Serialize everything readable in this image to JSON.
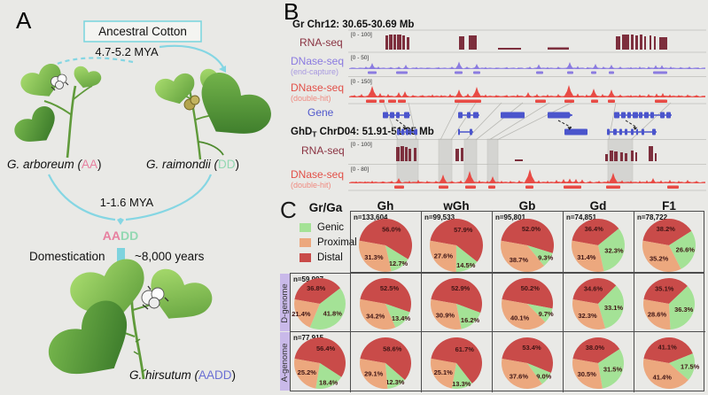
{
  "colors": {
    "background": "#e9e9e6",
    "cyan_arrow": "#85d6e3",
    "aa_pink": "#e77f9f",
    "dd_green": "#93d8b2",
    "aadd_blue": "#6a6fd4",
    "rna_seq_track": "#7d2f3d",
    "dnase_end_capture_track": "#8b7ce0",
    "dnase_double_hit_track": "#e84b45",
    "gene_track": "#4b55cc",
    "genic": "#a4e296",
    "proximal": "#eca87e",
    "distal": "#c94b49",
    "row_strip": "#c9b9e9"
  },
  "panel_a": {
    "label": "A",
    "ancestral_box": "Ancestral Cotton",
    "divergence_time": "4.7-5.2 MYA",
    "species_left": {
      "prefix": "G. arboreum (",
      "genome": "AA",
      "suffix": ")"
    },
    "species_right": {
      "prefix": "G. raimondii (",
      "genome": "DD",
      "suffix": ")"
    },
    "hybridization_time": "1-1.6 MYA",
    "hybrid_aa": "AA",
    "hybrid_dd": "DD",
    "domestication_label": "Domestication",
    "domestication_time": "~8,000 years",
    "species_bottom": {
      "prefix": "G. hirsutum (",
      "genome": "AADD",
      "suffix": ")"
    }
  },
  "panel_b": {
    "label": "B",
    "region_top": "Gr Chr12: 30.65-30.69 Mb",
    "region_bottom": {
      "base": "GhD",
      "sub": "T",
      "rest": " ChrD04: 51.91-51.95 Mb"
    },
    "tracks": [
      {
        "name": "RNA-seq",
        "scale": "[0 - 100]"
      },
      {
        "name": "DNase-seq",
        "sub": "(end-capture)",
        "scale": "[0 - 50]"
      },
      {
        "name": "DNase-seq",
        "sub": "(double-hit)",
        "scale": "[0 - 150]"
      },
      {
        "name": "Gene"
      },
      {
        "name": "RNA-seq",
        "scale": "[0 - 100]"
      },
      {
        "name": "DNase-seq",
        "sub": "(double-hit)",
        "scale": "[0 - 80]"
      }
    ]
  },
  "panel_c": {
    "label": "C",
    "corner_label": "Gr/Ga",
    "column_headers": [
      "Gh",
      "wGh",
      "Gb",
      "Gd",
      "F1"
    ],
    "row_labels": [
      "D-genome",
      "A-genome"
    ],
    "legend": [
      {
        "label": "Genic",
        "color": "#a4e296"
      },
      {
        "label": "Proximal",
        "color": "#eca87e"
      },
      {
        "label": "Distal",
        "color": "#c94b49"
      }
    ]
  },
  "chart_data": {
    "type": "pie",
    "unit": "percent",
    "slice_order": [
      "distal",
      "genic",
      "proximal"
    ],
    "start_angle_deg": 280,
    "legend_position": "top-left cell",
    "rows": [
      {
        "row": "all",
        "cells": [
          {
            "col": "Gh",
            "n": "n=133,604",
            "distal": 56.0,
            "genic": 12.7,
            "proximal": 31.3
          },
          {
            "col": "wGh",
            "n": "n=99,533",
            "distal": 57.9,
            "genic": 14.5,
            "proximal": 27.6
          },
          {
            "col": "Gb",
            "n": "n=95,801",
            "distal": 52.0,
            "genic": 9.3,
            "proximal": 38.7
          },
          {
            "col": "Gd",
            "n": "n=74,851",
            "distal": 36.4,
            "genic": 32.3,
            "proximal": 31.4
          },
          {
            "col": "F1",
            "n": "n=78,722",
            "distal": 38.2,
            "genic": 26.6,
            "proximal": 35.2
          }
        ]
      },
      {
        "row": "D-genome",
        "cells": [
          {
            "col": "Gr/Ga",
            "n": "n=59,997",
            "distal": 36.8,
            "genic": 41.8,
            "proximal": 21.4
          },
          {
            "col": "Gh",
            "distal": 52.5,
            "genic": 13.4,
            "proximal": 34.2
          },
          {
            "col": "wGh",
            "distal": 52.9,
            "genic": 16.2,
            "proximal": 30.9
          },
          {
            "col": "Gb",
            "distal": 50.2,
            "genic": 9.7,
            "proximal": 40.1
          },
          {
            "col": "Gd",
            "distal": 34.6,
            "genic": 33.1,
            "proximal": 32.3
          },
          {
            "col": "F1",
            "distal": 35.1,
            "genic": 36.3,
            "proximal": 28.6
          }
        ]
      },
      {
        "row": "A-genome",
        "cells": [
          {
            "col": "Gr/Ga",
            "n": "n=77,915",
            "distal": 56.4,
            "genic": 18.4,
            "proximal": 25.2
          },
          {
            "col": "Gh",
            "distal": 58.6,
            "genic": 12.3,
            "proximal": 29.1
          },
          {
            "col": "wGh",
            "distal": 61.7,
            "genic": 13.3,
            "proximal": 25.1
          },
          {
            "col": "Gb",
            "distal": 53.4,
            "genic": 9.0,
            "proximal": 37.6
          },
          {
            "col": "Gd",
            "distal": 38.0,
            "genic": 31.5,
            "proximal": 30.5
          },
          {
            "col": "F1",
            "distal": 41.1,
            "genic": 17.5,
            "proximal": 41.4
          }
        ]
      }
    ]
  }
}
